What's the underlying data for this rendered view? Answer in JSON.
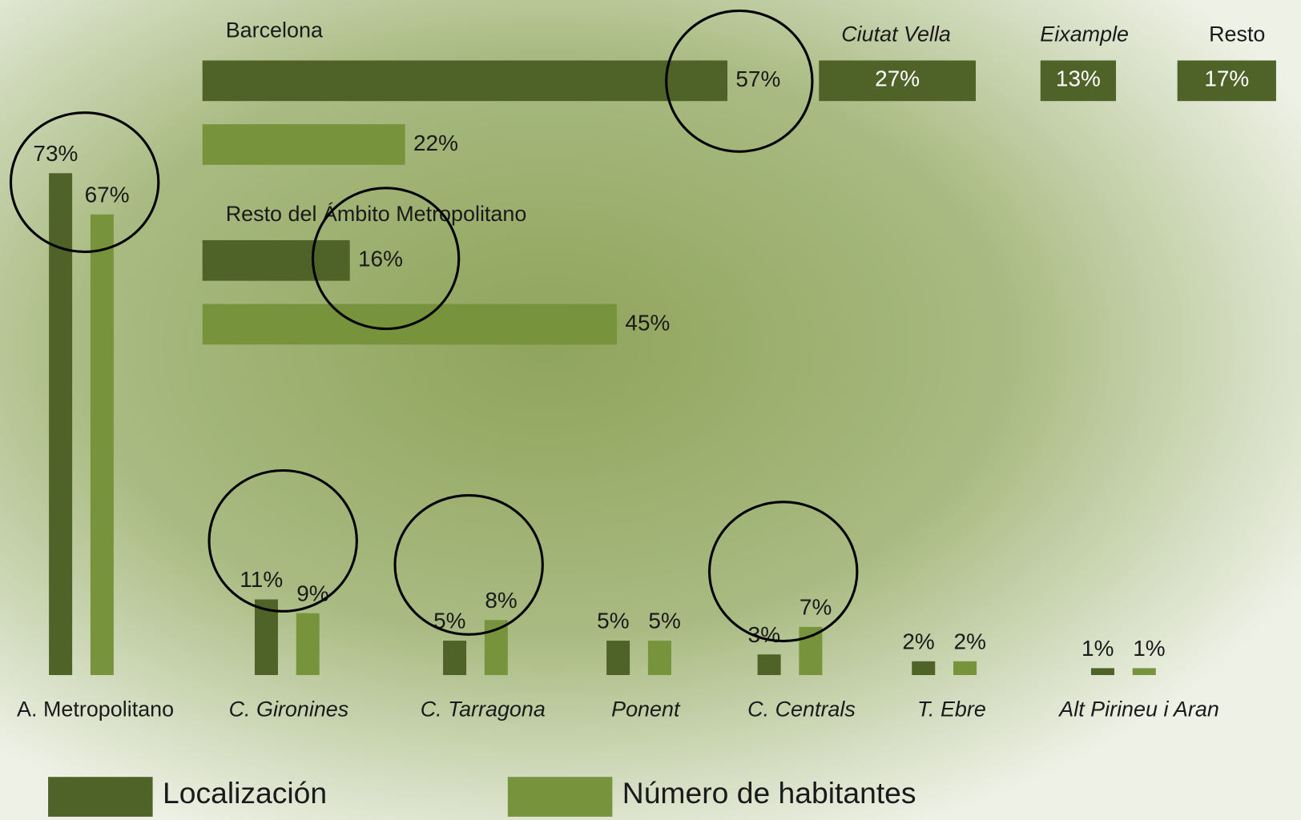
{
  "chart_data": [
    {
      "type": "bar",
      "categories": [
        "A. Metropolitano",
        "C. Gironines",
        "C. Tarragona",
        "Ponent",
        "C. Centrals",
        "T. Ebre",
        "Alt Pirineu i Aran"
      ],
      "series": [
        {
          "name": "Localización",
          "color": "#4f6228",
          "values": [
            73,
            11,
            5,
            5,
            3,
            2,
            1
          ],
          "value_labels": [
            "73%",
            "11%",
            "5%",
            "5%",
            "3%",
            "2%",
            "1%"
          ]
        },
        {
          "name": "Número de habitantes",
          "color": "#77933c",
          "values": [
            67,
            9,
            8,
            5,
            7,
            2,
            1
          ],
          "value_labels": [
            "67%",
            "9%",
            "8%",
            "5%",
            "7%",
            "2%",
            "1%"
          ]
        }
      ]
    },
    {
      "type": "hbar",
      "categories": [
        "Barcelona",
        "Resto del Ámbito Metropolitano"
      ],
      "series": [
        {
          "name": "Localización",
          "color": "#4f6228",
          "values": [
            57,
            16
          ],
          "value_labels": [
            "57%",
            "16%"
          ]
        },
        {
          "name": "Número de habitantes",
          "color": "#77933c",
          "values": [
            22,
            45
          ],
          "value_labels": [
            "22%",
            "45%"
          ]
        }
      ]
    },
    {
      "type": "boxes",
      "categories": [
        "Ciutat Vella",
        "Eixample",
        "Resto"
      ],
      "values": [
        27,
        13,
        17
      ],
      "value_labels": [
        "27%",
        "13%",
        "17%"
      ],
      "color": "#4f6228"
    }
  ]
}
